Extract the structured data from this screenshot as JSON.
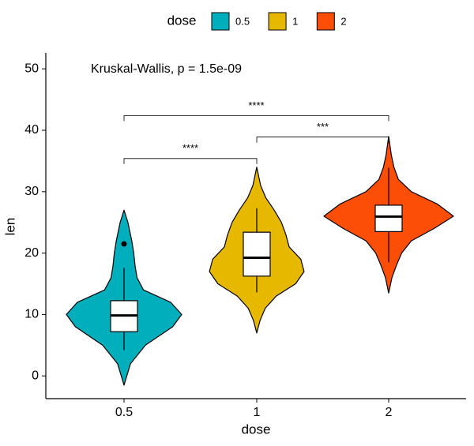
{
  "chart_data": {
    "type": "violin",
    "title": null,
    "annotation": "Kruskal-Wallis, p = 1.5e-09",
    "x_label": "dose",
    "y_label": "len",
    "legend_title": "dose",
    "legend_position": "top",
    "categories": [
      "0.5",
      "1",
      "2"
    ],
    "colors": [
      "#00AFBB",
      "#E7B800",
      "#FC4E07"
    ],
    "ylim": [
      -3.7,
      52.6
    ],
    "yticks": [
      0,
      10,
      20,
      30,
      40,
      50
    ],
    "violins": [
      {
        "y": [
          -1.5,
          2,
          5,
          8,
          10,
          12,
          14,
          16,
          18,
          20,
          22,
          25,
          27
        ],
        "width": [
          0,
          0.1,
          0.33,
          0.75,
          0.89,
          0.72,
          0.3,
          0.2,
          0.17,
          0.15,
          0.12,
          0.06,
          0
        ]
      },
      {
        "y": [
          7,
          9,
          11,
          13,
          15,
          17,
          19,
          21,
          23,
          25,
          27,
          29,
          31,
          34
        ],
        "width": [
          0,
          0.05,
          0.13,
          0.3,
          0.6,
          0.73,
          0.68,
          0.5,
          0.45,
          0.38,
          0.27,
          0.14,
          0.06,
          0
        ]
      },
      {
        "y": [
          13.5,
          16,
          18,
          20,
          22,
          24,
          26,
          28,
          30,
          32,
          34,
          36,
          39
        ],
        "width": [
          0,
          0.05,
          0.12,
          0.2,
          0.35,
          0.7,
          1.0,
          0.75,
          0.35,
          0.15,
          0.08,
          0.04,
          0
        ]
      }
    ],
    "boxes": [
      {
        "lower": 4.2,
        "q1": 7.2,
        "median": 9.85,
        "q3": 12.25,
        "upper": 17.6,
        "outliers": [
          21.5
        ]
      },
      {
        "lower": 13.6,
        "q1": 16.25,
        "median": 19.25,
        "q3": 23.4,
        "upper": 27.3,
        "outliers": []
      },
      {
        "lower": 18.5,
        "q1": 23.5,
        "median": 25.95,
        "q3": 27.8,
        "upper": 33.9,
        "outliers": []
      }
    ],
    "comparisons": [
      {
        "from": 0,
        "to": 1,
        "y": 35.4,
        "label": "****"
      },
      {
        "from": 1,
        "to": 2,
        "y": 38.9,
        "label": "***"
      },
      {
        "from": 0,
        "to": 2,
        "y": 42.4,
        "label": "****"
      }
    ]
  }
}
